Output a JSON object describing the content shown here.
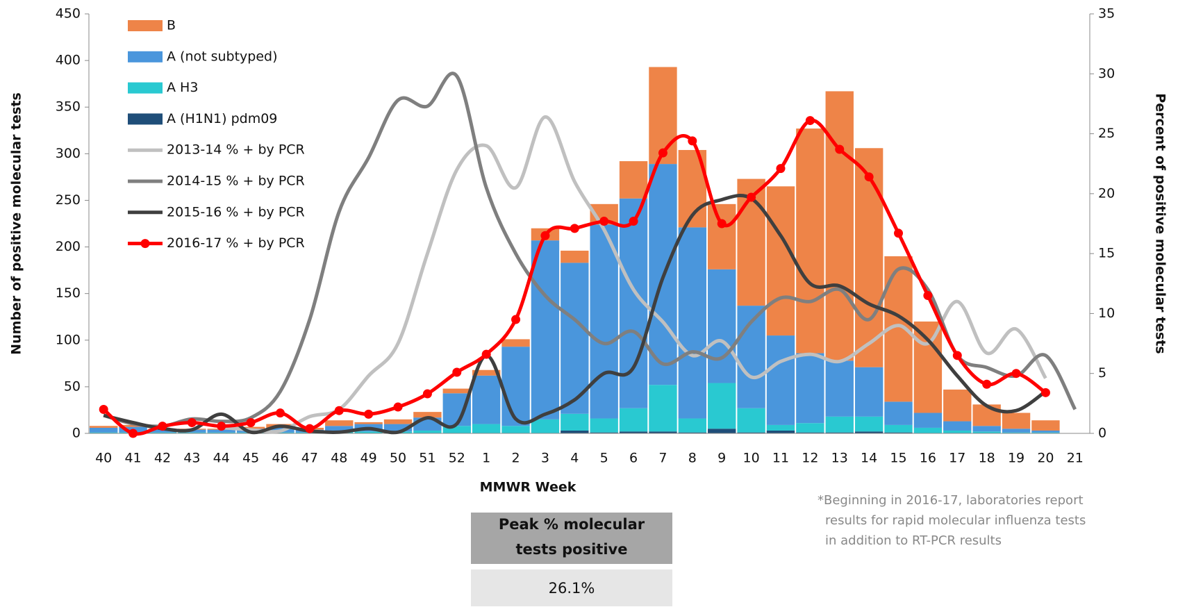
{
  "chart_data": {
    "type": "bar",
    "x_label": "MMWR Week",
    "y_label": "Number of positive molecular tests",
    "y2_label": "Percent of positive molecular tests",
    "categories": [
      "40",
      "41",
      "42",
      "43",
      "44",
      "45",
      "46",
      "47",
      "48",
      "49",
      "50",
      "51",
      "52",
      "1",
      "2",
      "3",
      "4",
      "5",
      "6",
      "7",
      "8",
      "9",
      "10",
      "11",
      "12",
      "13",
      "14",
      "15",
      "16",
      "17",
      "18",
      "19",
      "20",
      "21"
    ],
    "ylim": [
      0,
      450
    ],
    "yticks": [
      0,
      50,
      100,
      150,
      200,
      250,
      300,
      350,
      400,
      450
    ],
    "y2lim": [
      0,
      35
    ],
    "y2ticks": [
      0,
      5,
      10,
      15,
      20,
      25,
      30,
      35
    ],
    "series": [
      {
        "name": "B",
        "type": "bar",
        "color": "#ee8448",
        "values": [
          2,
          2,
          1,
          1,
          1,
          2,
          4,
          2,
          6,
          2,
          5,
          6,
          5,
          6,
          8,
          13,
          13,
          22,
          40,
          104,
          83,
          70,
          136,
          160,
          241,
          289,
          235,
          156,
          98,
          34,
          23,
          17,
          11,
          0
        ]
      },
      {
        "name": "A (not subtyped)",
        "type": "bar",
        "color": "#4a96dc",
        "values": [
          5,
          6,
          3,
          3,
          3,
          4,
          5,
          3,
          6,
          8,
          8,
          14,
          35,
          52,
          85,
          192,
          162,
          208,
          225,
          237,
          205,
          122,
          110,
          96,
          75,
          60,
          53,
          25,
          16,
          10,
          6,
          4,
          2,
          0
        ]
      },
      {
        "name": "A H3",
        "type": "bar",
        "color": "#29c9d1",
        "values": [
          1,
          1,
          1,
          1,
          1,
          1,
          1,
          1,
          2,
          2,
          2,
          3,
          8,
          10,
          8,
          15,
          18,
          15,
          25,
          50,
          15,
          49,
          26,
          6,
          10,
          17,
          16,
          8,
          6,
          3,
          2,
          1,
          1,
          0
        ]
      },
      {
        "name": "A (H1N1) pdm09",
        "type": "bar",
        "color": "#1f4e79",
        "values": [
          0,
          0,
          0,
          0,
          0,
          0,
          0,
          0,
          0,
          0,
          0,
          0,
          0,
          0,
          0,
          0,
          3,
          1,
          2,
          2,
          1,
          5,
          1,
          3,
          1,
          1,
          2,
          1,
          0,
          0,
          0,
          0,
          0,
          0
        ]
      },
      {
        "name": "2013-14 % + by PCR",
        "type": "line",
        "axis": "y2",
        "color": "#c0c0c0",
        "values": [
          null,
          null,
          null,
          null,
          0.5,
          0.3,
          0.2,
          1.4,
          2.0,
          4.8,
          7.5,
          15,
          22,
          24,
          20.5,
          26.4,
          21,
          17,
          12,
          9.3,
          6.5,
          7.7,
          4.7,
          6,
          6.6,
          6,
          7.5,
          9,
          7.5,
          11,
          6.7,
          8.7,
          4.6,
          null
        ]
      },
      {
        "name": "2014-15 % + by PCR",
        "type": "line",
        "axis": "y2",
        "color": "#7f7f7f",
        "values": [
          1.5,
          0.8,
          0.6,
          1.2,
          1.0,
          1.3,
          3.5,
          9.5,
          18.5,
          23,
          27.8,
          27.3,
          29.8,
          20.5,
          15,
          11.5,
          9.5,
          7.5,
          8.5,
          5.8,
          6.8,
          6.3,
          9.3,
          11.3,
          11,
          12,
          9.5,
          13.7,
          12,
          6.5,
          5.5,
          4.8,
          6.5,
          2.0
        ]
      },
      {
        "name": "2015-16 % + by PCR",
        "type": "line",
        "axis": "y2",
        "color": "#3f3f3f",
        "values": [
          1.5,
          0.9,
          0.4,
          0.3,
          1.6,
          0.1,
          0.6,
          0.2,
          0.1,
          0.4,
          0.1,
          1.3,
          0.8,
          6.5,
          1.2,
          1.6,
          2.8,
          5.0,
          5.5,
          13,
          18.2,
          19.5,
          19.6,
          16.5,
          12.5,
          12.3,
          10.8,
          9.8,
          7.8,
          4.8,
          2.3,
          1.9,
          3.5,
          null
        ]
      },
      {
        "name": "2016-17 % + by PCR",
        "type": "line",
        "axis": "y2",
        "color": "#ff0000",
        "marker": "circle",
        "values": [
          2.0,
          0.0,
          0.6,
          0.9,
          0.6,
          0.9,
          1.7,
          0.4,
          1.9,
          1.6,
          2.2,
          3.3,
          5.1,
          6.6,
          9.5,
          16.5,
          17.1,
          17.7,
          17.7,
          23.4,
          24.4,
          17.5,
          19.7,
          22.1,
          26.1,
          23.7,
          21.4,
          16.7,
          11.5,
          6.5,
          4.1,
          5.0,
          3.4,
          null
        ]
      }
    ]
  },
  "table": {
    "header": [
      "Peak % molecular",
      "tests positive"
    ],
    "value": "26.1%"
  },
  "footnote": [
    "*Beginning in 2016-17, laboratories report",
    "results for rapid molecular influenza tests",
    "in addition to RT-PCR results"
  ]
}
